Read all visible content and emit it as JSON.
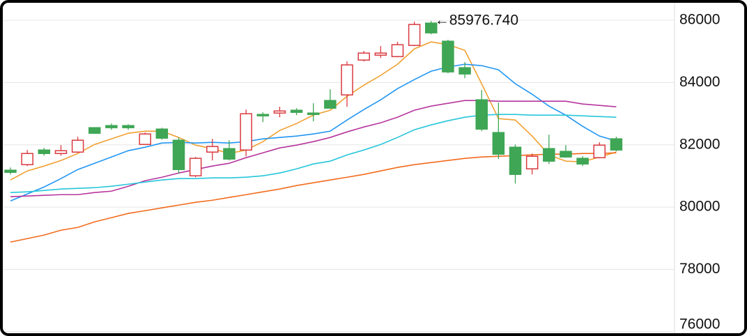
{
  "chart_data": {
    "type": "candlestick",
    "annotation": "←85976.740",
    "open": [
      81185,
      81364,
      81834,
      81722,
      81767,
      82551,
      82618,
      82618,
      82013,
      82506,
      82148,
      81006,
      81767,
      81879,
      81834,
      82976,
      83021,
      83111,
      83021,
      83424,
      83604,
      84723,
      84880,
      84835,
      85194,
      85910,
      85328,
      84477,
      83447,
      82394,
      81924,
      81230,
      81879,
      81790,
      81566,
      81588,
      82193
    ],
    "high": [
      81274,
      81834,
      81901,
      81991,
      82260,
      82551,
      82685,
      82663,
      82394,
      82551,
      82237,
      81610,
      82193,
      82148,
      83133,
      83044,
      83223,
      83178,
      83335,
      83783,
      84679,
      85015,
      85171,
      85306,
      85955,
      85976.74,
      85373,
      84656,
      83760,
      83357,
      82013,
      81722,
      82327,
      81991,
      81633,
      82081,
      82260
    ],
    "low": [
      81051,
      81319,
      81655,
      81655,
      81745,
      82349,
      82484,
      82484,
      81991,
      82170,
      81073,
      80961,
      81499,
      81499,
      81633,
      82730,
      82887,
      82954,
      82753,
      83178,
      83223,
      84679,
      84791,
      84813,
      85171,
      85552,
      84298,
      84141,
      82439,
      81543,
      80759,
      81051,
      81386,
      81588,
      81319,
      81566,
      81790
    ],
    "close": [
      81118,
      81722,
      81722,
      81812,
      82148,
      82372,
      82551,
      82551,
      82349,
      82215,
      81207,
      81566,
      81946,
      81543,
      82999,
      82932,
      83088,
      83044,
      82976,
      83178,
      84567,
      84947,
      84947,
      85216,
      85866,
      85597,
      84343,
      84276,
      82506,
      81700,
      81051,
      81633,
      81476,
      81610,
      81386,
      81991,
      81834
    ],
    "up_color": "#d9393f",
    "down_color": "#3ea654",
    "series": [
      {
        "color": "#f0a030",
        "values": [
          80871,
          81162,
          81319,
          81498,
          81722,
          82013,
          82192,
          82372,
          82439,
          82439,
          82237,
          81991,
          81879,
          81722,
          81834,
          82103,
          82461,
          82685,
          82954,
          83111,
          83559,
          83917,
          84231,
          84589,
          85082,
          85306,
          85216,
          85037,
          83962,
          82842,
          82797,
          82282,
          81677,
          81476,
          81453,
          81610,
          81767
        ]
      },
      {
        "color": "#2196f3",
        "values": [
          80199,
          80423,
          80647,
          80916,
          81207,
          81408,
          81610,
          81812,
          81924,
          82058,
          82080,
          82058,
          82080,
          82058,
          82103,
          82192,
          82237,
          82282,
          82349,
          82439,
          82797,
          83133,
          83447,
          83805,
          84096,
          84365,
          84500,
          84589,
          84544,
          84410,
          83962,
          83626,
          83245,
          82954,
          82596,
          82282,
          82125
        ]
      },
      {
        "color": "#b7359e",
        "values": [
          80333,
          80356,
          80378,
          80400,
          80400,
          80468,
          80512,
          80669,
          80848,
          80960,
          81095,
          81207,
          81319,
          81408,
          81588,
          81744,
          81901,
          81991,
          82103,
          82237,
          82416,
          82573,
          82708,
          82887,
          83111,
          83245,
          83335,
          83424,
          83424,
          83402,
          83402,
          83402,
          83402,
          83402,
          83312,
          83268,
          83223
        ]
      },
      {
        "color": "#26c6da",
        "values": [
          80468,
          80490,
          80535,
          80580,
          80602,
          80624,
          80669,
          80736,
          80804,
          80871,
          80916,
          80916,
          80938,
          80938,
          80960,
          81005,
          81095,
          81229,
          81386,
          81476,
          81677,
          81834,
          82013,
          82237,
          82484,
          82640,
          82775,
          82887,
          82954,
          82976,
          82976,
          82954,
          82954,
          82954,
          82932,
          82909,
          82887
        ]
      },
      {
        "color": "#f26b1d",
        "values": [
          78877,
          78989,
          79101,
          79258,
          79348,
          79527,
          79661,
          79796,
          79885,
          79975,
          80064,
          80154,
          80221,
          80311,
          80400,
          80490,
          80580,
          80692,
          80781,
          80871,
          80960,
          81050,
          81162,
          81274,
          81364,
          81431,
          81498,
          81565,
          81610,
          81632,
          81655,
          81677,
          81700,
          81700,
          81722,
          81722,
          81744
        ]
      }
    ],
    "ylim": [
      75950,
      86540
    ],
    "yticks": [
      76000,
      78000,
      80000,
      82000,
      84000,
      86000
    ],
    "grid": true
  }
}
